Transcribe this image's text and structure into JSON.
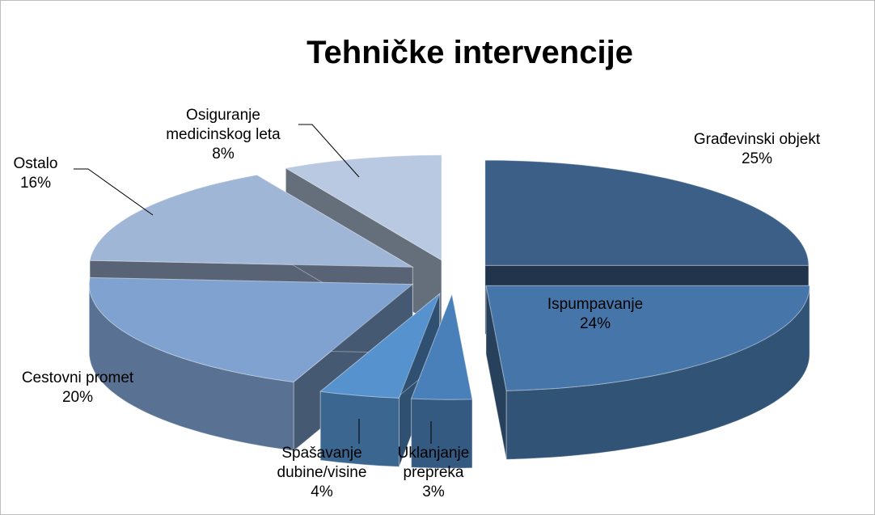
{
  "chart_data": {
    "type": "pie3d",
    "title": "Tehničke intervencije",
    "categories": [
      "Građevinski objekt",
      "Ispumpavanje",
      "Uklanjanje prepreka",
      "Spašavanje dubine/visine",
      "Cestovni promet",
      "Ostalo",
      "Osiguranje medicinskog leta"
    ],
    "values": [
      25,
      24,
      3,
      4,
      20,
      16,
      8
    ],
    "value_labels": [
      "25%",
      "24%",
      "3%",
      "4%",
      "20%",
      "16%",
      "8%"
    ],
    "colors": [
      "#3c5f88",
      "#4676a9",
      "#4a80ba",
      "#5592ce",
      "#7fa2d0",
      "#a0b6d7",
      "#b8c9e1"
    ]
  }
}
